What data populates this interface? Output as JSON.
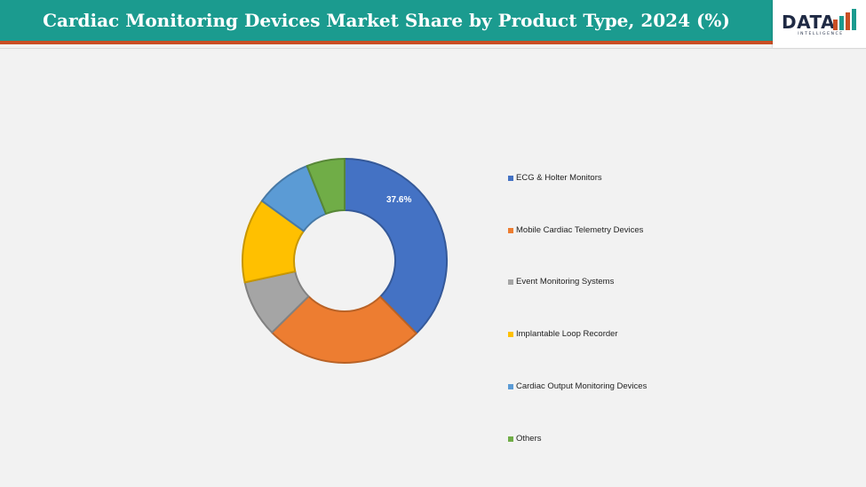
{
  "header": {
    "title": "Cardiac Monitoring Devices Market Share by Product Type, 2024 (%)",
    "background_color": "#1b9b8f",
    "accent_line_color": "#c94f24"
  },
  "logo": {
    "text": "DATA",
    "subtext": "INTELLIGENCE",
    "icon": "bar-chart-logo-icon"
  },
  "chart_data": {
    "type": "pie",
    "variant": "donut",
    "categories": [
      "ECG & Holter Monitors",
      "Mobile Cardiac Telemetry Devices",
      "Event Monitoring Systems",
      "Implantable Loop Recorder",
      "Cardiac Output Monitoring Devices",
      "Others"
    ],
    "values": [
      37.6,
      25.0,
      9.0,
      13.4,
      9.0,
      6.0
    ],
    "colors": [
      "#4472c4",
      "#ed7d31",
      "#a5a5a5",
      "#ffc000",
      "#5b9bd5",
      "#70ad47"
    ],
    "data_labels": [
      "37.6%",
      "",
      "",
      "",
      "",
      ""
    ],
    "legend_position": "right",
    "title": "",
    "start_angle_deg": 0,
    "direction": "clockwise"
  }
}
